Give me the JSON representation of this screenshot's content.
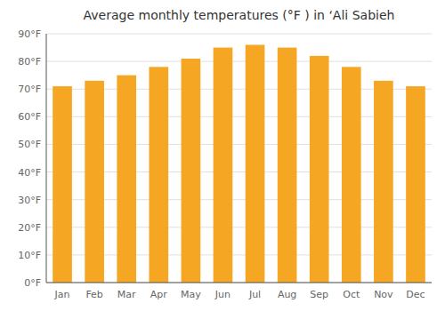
{
  "chart_data": {
    "type": "bar",
    "title": "Average monthly temperatures (°F ) in ‘Ali Sabieh",
    "categories": [
      "Jan",
      "Feb",
      "Mar",
      "Apr",
      "May",
      "Jun",
      "Jul",
      "Aug",
      "Sep",
      "Oct",
      "Nov",
      "Dec"
    ],
    "values": [
      71,
      73,
      75,
      78,
      81,
      85,
      86,
      85,
      82,
      78,
      73,
      71
    ],
    "color": "#F5A623",
    "ylim": [
      0,
      90
    ],
    "yticks": [
      {
        "value": 0,
        "label": "0°F"
      },
      {
        "value": 10,
        "label": "10°F"
      },
      {
        "value": 20,
        "label": "20°F"
      },
      {
        "value": 30,
        "label": "30°F"
      },
      {
        "value": 40,
        "label": "40°F"
      },
      {
        "value": 50,
        "label": "50°F"
      },
      {
        "value": 60,
        "label": "60°F"
      },
      {
        "value": 70,
        "label": "70°F"
      },
      {
        "value": 80,
        "label": "80°F"
      },
      {
        "value": 90,
        "label": "90°F"
      }
    ],
    "grid": true
  }
}
